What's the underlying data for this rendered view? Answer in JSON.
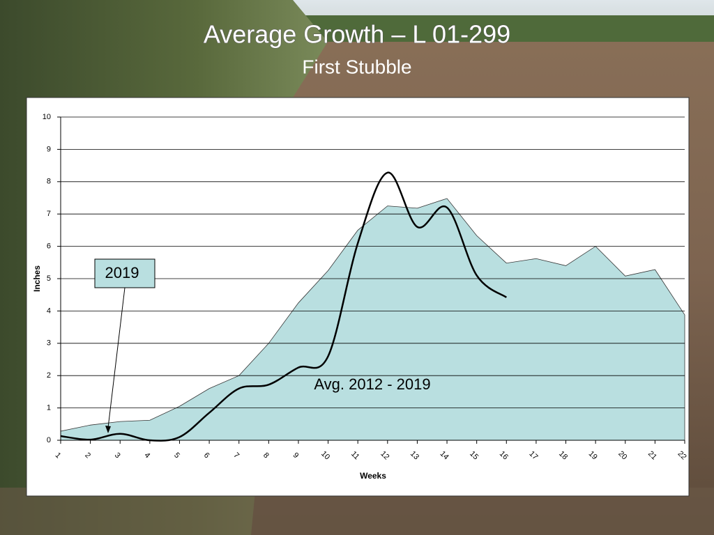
{
  "chart_data": {
    "type": "line",
    "title": "Average Growth – L 01-299",
    "subtitle": "First Stubble",
    "x_label": "Weeks",
    "y_label": "Inches",
    "x": [
      1,
      2,
      3,
      4,
      5,
      6,
      7,
      8,
      9,
      10,
      11,
      12,
      13,
      14,
      15,
      16,
      17,
      18,
      19,
      20,
      21,
      22
    ],
    "xlim": [
      1,
      22
    ],
    "xticks": [
      1,
      2,
      3,
      4,
      5,
      6,
      7,
      8,
      9,
      10,
      11,
      12,
      13,
      14,
      15,
      16,
      17,
      18,
      19,
      20,
      21,
      22
    ],
    "ylim": [
      0,
      10
    ],
    "yticks": [
      0,
      1,
      2,
      3,
      4,
      5,
      6,
      7,
      8,
      9,
      10
    ],
    "grid": true,
    "series": [
      {
        "name": "Avg. 2012 - 2019",
        "kind": "area",
        "color": "#b9dfe0",
        "values": [
          0.28,
          0.47,
          0.58,
          0.62,
          1.05,
          1.6,
          2.0,
          3.0,
          4.25,
          5.25,
          6.5,
          7.25,
          7.18,
          7.48,
          6.33,
          5.48,
          5.62,
          5.4,
          6.0,
          5.08,
          5.28,
          3.88
        ]
      },
      {
        "name": "2019",
        "kind": "line",
        "color": "#000000",
        "values": [
          0.13,
          0.02,
          0.2,
          0.0,
          0.1,
          0.85,
          1.6,
          1.72,
          2.25,
          2.6,
          6.1,
          8.28,
          6.6,
          7.2,
          5.1,
          4.42,
          null,
          null,
          null,
          null,
          null,
          null
        ]
      }
    ]
  }
}
